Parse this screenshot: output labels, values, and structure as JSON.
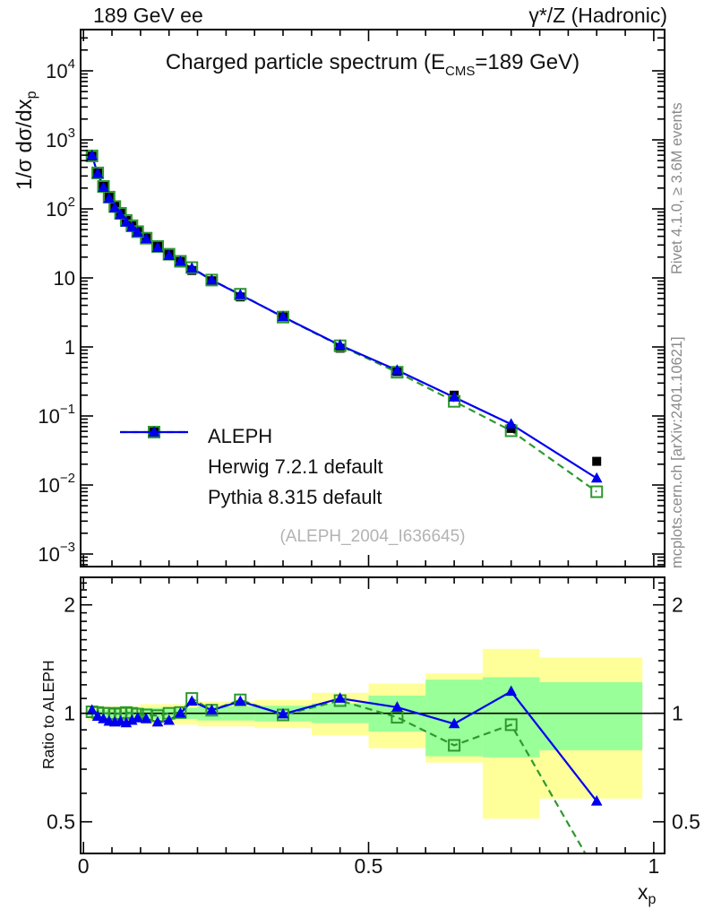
{
  "header": {
    "left": "189 GeV ee",
    "right": "γ*/Z (Hadronic)"
  },
  "side_captions": {
    "top": "Rivet 4.1.0, ≥ 3.6M events",
    "bottom": "mcplots.cern.ch [arXiv:2401.10621]"
  },
  "main_panel": {
    "title_pre": "Charged particle spectrum (E",
    "title_sub": "CMS",
    "title_post": "=189 GeV)",
    "ylabel_pre": "1/σ  dσ/dx",
    "ylabel_sub": "p",
    "watermark": "(ALEPH_2004_I636645)"
  },
  "ratio_panel": {
    "ylabel": "Ratio to ALEPH"
  },
  "x_axis": {
    "label_base": "x",
    "label_sub": "p"
  },
  "chart_data": {
    "type": "line",
    "title": "Charged particle spectrum (E_CMS=189 GeV)",
    "xlabel": "x_p",
    "ylabel": "1/σ dσ/dx_p",
    "ratio_ylabel": "Ratio to ALEPH",
    "y_log": true,
    "ratio_log": true,
    "xlim": [
      -0.005,
      1.019
    ],
    "main_ylim": [
      0.00066,
      39800
    ],
    "ratio_ylim": [
      0.408,
      2.38
    ],
    "x": [
      0.015,
      0.025,
      0.035,
      0.045,
      0.055,
      0.065,
      0.075,
      0.085,
      0.095,
      0.11,
      0.13,
      0.15,
      0.17,
      0.19,
      0.225,
      0.275,
      0.35,
      0.45,
      0.55,
      0.65,
      0.75,
      0.9
    ],
    "series": [
      {
        "name": "ALEPH",
        "role": "data",
        "color": "#000000",
        "marker": "square-filled",
        "line": "none",
        "values": [
          580,
          330,
          211,
          148,
          109,
          86,
          68,
          57,
          47,
          38,
          29,
          22,
          17.3,
          12.8,
          9.1,
          5.3,
          2.74,
          0.96,
          0.44,
          0.2,
          0.066,
          0.022
        ]
      },
      {
        "name": "Herwig 7.2.1 default",
        "role": "mc",
        "color": "#2d992d",
        "marker": "square-open",
        "line": "dashed",
        "values": [
          586,
          332,
          211,
          148,
          108,
          86,
          68,
          57,
          46.8,
          37.6,
          28.6,
          22.0,
          17.4,
          14.1,
          9.3,
          5.8,
          2.71,
          1.04,
          0.43,
          0.163,
          0.061,
          0.008
        ],
        "ratio": [
          1.01,
          1.005,
          1.0,
          1.0,
          0.995,
          1.0,
          1.005,
          1.0,
          0.995,
          0.99,
          0.985,
          1.0,
          1.005,
          1.1,
          1.02,
          1.09,
          0.99,
          1.085,
          0.975,
          0.815,
          0.93,
          0.36
        ]
      },
      {
        "name": "Pythia 8.315 default",
        "role": "mc",
        "color": "#0000ee",
        "marker": "triangle-filled",
        "line": "solid",
        "values": [
          590,
          323,
          204,
          141,
          103,
          82,
          64,
          54,
          45.6,
          36.7,
          27.4,
          21.0,
          17.3,
          13.8,
          9.3,
          5.7,
          2.73,
          1.06,
          0.46,
          0.187,
          0.076,
          0.0125
        ],
        "ratio": [
          1.02,
          0.98,
          0.965,
          0.95,
          0.945,
          0.95,
          0.94,
          0.955,
          0.97,
          0.965,
          0.945,
          0.955,
          1.0,
          1.08,
          1.02,
          1.08,
          0.995,
          1.1,
          1.04,
          0.935,
          1.15,
          0.57
        ]
      }
    ],
    "bands": {
      "yellow_color": "#ffff99",
      "green_color": "#99ff99",
      "bins": [
        [
          0.008,
          0.1
        ],
        [
          0.1,
          0.2
        ],
        [
          0.2,
          0.3
        ],
        [
          0.3,
          0.4
        ],
        [
          0.4,
          0.5
        ],
        [
          0.5,
          0.6
        ],
        [
          0.6,
          0.7
        ],
        [
          0.7,
          0.8
        ],
        [
          0.8,
          0.98
        ]
      ],
      "yellow": [
        [
          0.955,
          1.045
        ],
        [
          0.93,
          1.06
        ],
        [
          0.92,
          1.08
        ],
        [
          0.91,
          1.09
        ],
        [
          0.87,
          1.14
        ],
        [
          0.8,
          1.21
        ],
        [
          0.73,
          1.29
        ],
        [
          0.51,
          1.51
        ],
        [
          0.58,
          1.43
        ]
      ],
      "green": [
        [
          0.975,
          1.02
        ],
        [
          0.965,
          1.035
        ],
        [
          0.955,
          1.045
        ],
        [
          0.95,
          1.05
        ],
        [
          0.94,
          1.065
        ],
        [
          0.89,
          1.12
        ],
        [
          0.76,
          1.24
        ],
        [
          0.755,
          1.26
        ],
        [
          0.79,
          1.22
        ]
      ]
    },
    "yticks_main": [
      {
        "v": 10000,
        "b": "10",
        "e": "4"
      },
      {
        "v": 1000,
        "b": "10",
        "e": "3"
      },
      {
        "v": 100,
        "b": "10",
        "e": "2"
      },
      {
        "v": 10,
        "b": "10",
        "e": ""
      },
      {
        "v": 1,
        "b": "1",
        "e": ""
      },
      {
        "v": 0.1,
        "b": "10",
        "e": "−1"
      },
      {
        "v": 0.01,
        "b": "10",
        "e": "−2"
      },
      {
        "v": 0.001,
        "b": "10",
        "e": "−3"
      }
    ],
    "yticks_ratio": [
      {
        "v": 2,
        "t": "2"
      },
      {
        "v": 1,
        "t": "1"
      },
      {
        "v": 0.5,
        "t": "0.5"
      }
    ],
    "xticks": [
      {
        "v": 0,
        "t": "0"
      },
      {
        "v": 0.5,
        "t": "0.5"
      },
      {
        "v": 1,
        "t": "1"
      }
    ]
  }
}
